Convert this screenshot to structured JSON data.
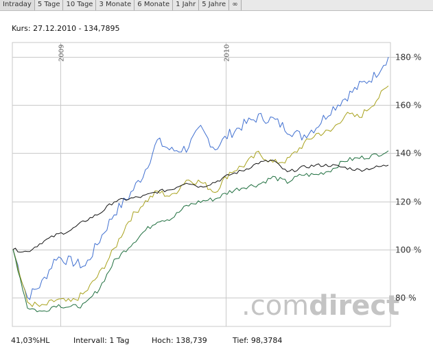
{
  "tabs": [
    "Intraday",
    "5 Tage",
    "10 Tage",
    "3 Monate",
    "6 Monate",
    "1 Jahr",
    "5 Jahre",
    "∞"
  ],
  "kurs": "Kurs: 27.12.2010 - 134,7895",
  "footer": {
    "change": "41,03%HL",
    "interval": "Intervall: 1 Tag",
    "high": "Hoch:  138,739",
    "low": "Tief: 98,3784"
  },
  "watermark": {
    "prefix": ".com",
    "suffix": "direct"
  },
  "colors": {
    "blue": "#3f6fd0",
    "olive": "#a8a11b",
    "green": "#1e6e3e",
    "black": "#111111",
    "grid": "#c9c9c9"
  },
  "chart_data": {
    "type": "line",
    "x_ticks": [
      "2009",
      "2010"
    ],
    "y_ticks": [
      "80 %",
      "100 %",
      "120 %",
      "140 %",
      "160 %",
      "180 %"
    ],
    "ylim": [
      68,
      186
    ],
    "grid": true,
    "x": [
      "2008-10",
      "2008-11",
      "2008-12",
      "2009-01",
      "2009-02",
      "2009-03",
      "2009-04",
      "2009-05",
      "2009-06",
      "2009-07",
      "2009-08",
      "2009-09",
      "2009-10",
      "2009-11",
      "2009-12",
      "2010-01",
      "2010-02",
      "2010-03",
      "2010-04",
      "2010-05",
      "2010-06",
      "2010-07",
      "2010-08",
      "2010-09",
      "2010-10",
      "2010-11",
      "2010-12"
    ],
    "series": [
      {
        "color": "#3f6fd0",
        "values": [
          100,
          80,
          86,
          97,
          95,
          93,
          104,
          115,
          122,
          131,
          145,
          141,
          142,
          150,
          142,
          148,
          152,
          155,
          154,
          150,
          147,
          151,
          158,
          163,
          168,
          172,
          180
        ]
      },
      {
        "color": "#a8a11b",
        "values": [
          100,
          78,
          76,
          79,
          78,
          82,
          90,
          100,
          112,
          119,
          124,
          122,
          129,
          128,
          124,
          132,
          135,
          140,
          136,
          137,
          143,
          148,
          149,
          156,
          155,
          161,
          168
        ]
      },
      {
        "color": "#1e6e3e",
        "values": [
          100,
          76,
          74,
          77,
          76,
          77,
          84,
          95,
          101,
          107,
          112,
          113,
          118,
          120,
          121,
          124,
          126,
          127,
          130,
          128,
          131,
          131,
          133,
          137,
          138,
          139,
          141
        ]
      },
      {
        "color": "#111111",
        "values": [
          100,
          99,
          103,
          106,
          108,
          112,
          115,
          120,
          121,
          122,
          124,
          125,
          128,
          126,
          128,
          131,
          133,
          136,
          137,
          132,
          134,
          135,
          135,
          134,
          133,
          134,
          135
        ]
      }
    ]
  }
}
